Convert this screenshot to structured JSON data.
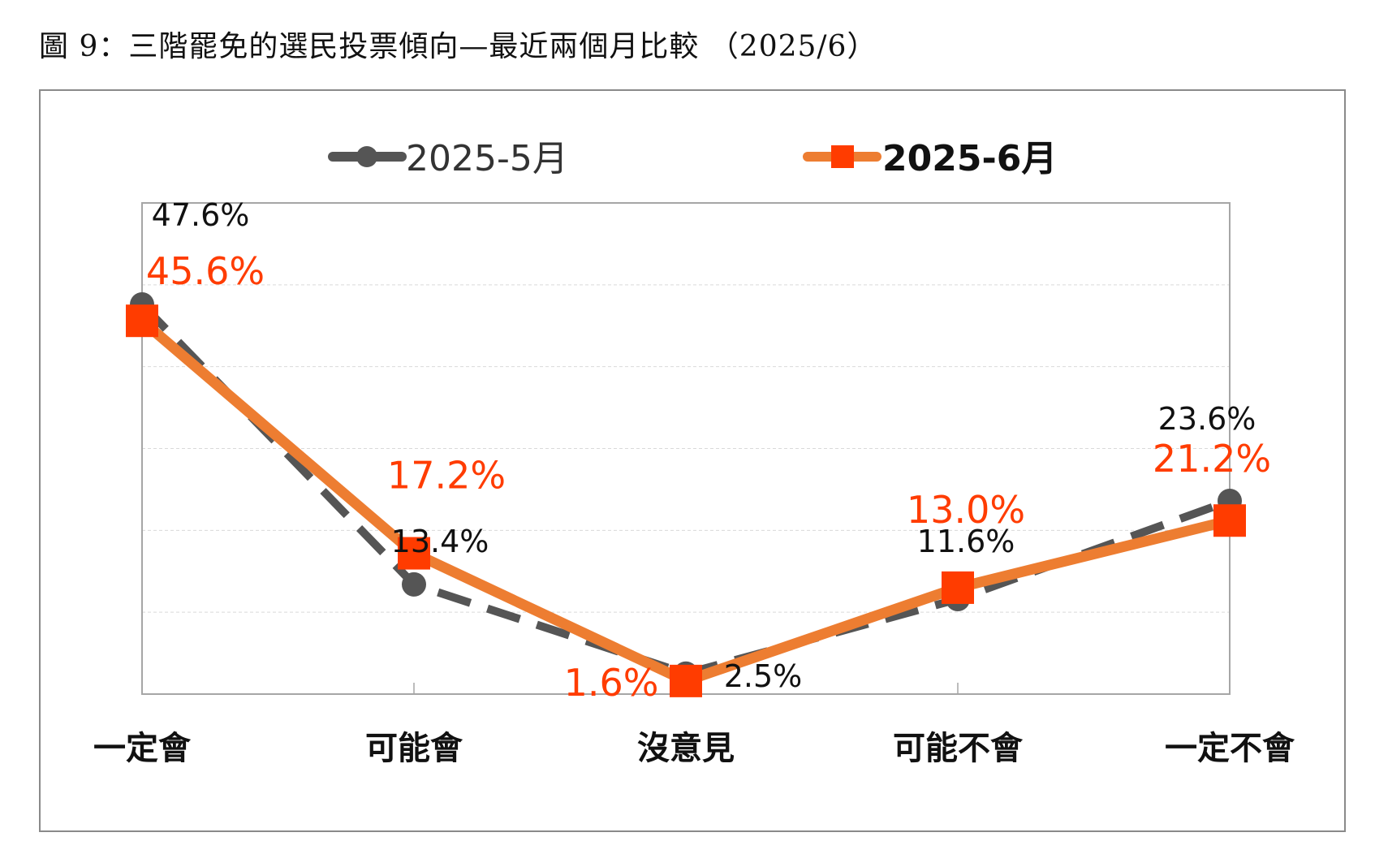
{
  "title": "圖 9：三階罷免的選民投票傾向—最近兩個月比較 （2025/6）",
  "chart_data": {
    "type": "line",
    "categories": [
      "一定會",
      "可能會",
      "沒意見",
      "可能不會",
      "一定不會"
    ],
    "series": [
      {
        "name": "2025-5月",
        "values": [
          47.6,
          13.4,
          2.5,
          11.6,
          23.6
        ],
        "labels": [
          "47.6%",
          "13.4%",
          "2.5%",
          "11.6%",
          "23.6%"
        ],
        "color": "#555555",
        "line_style": "dashed",
        "marker": "circle"
      },
      {
        "name": "2025-6月",
        "values": [
          45.6,
          17.2,
          1.6,
          13.0,
          21.2
        ],
        "labels": [
          "45.6%",
          "17.2%",
          "1.6%",
          "13.0%",
          "21.2%"
        ],
        "color": "#ed7d31",
        "label_color": "#ff3c00",
        "marker_color": "#ff3c00",
        "line_style": "solid",
        "marker": "square"
      }
    ],
    "ylim": [
      0,
      60
    ],
    "grid": true,
    "legend": "top"
  }
}
